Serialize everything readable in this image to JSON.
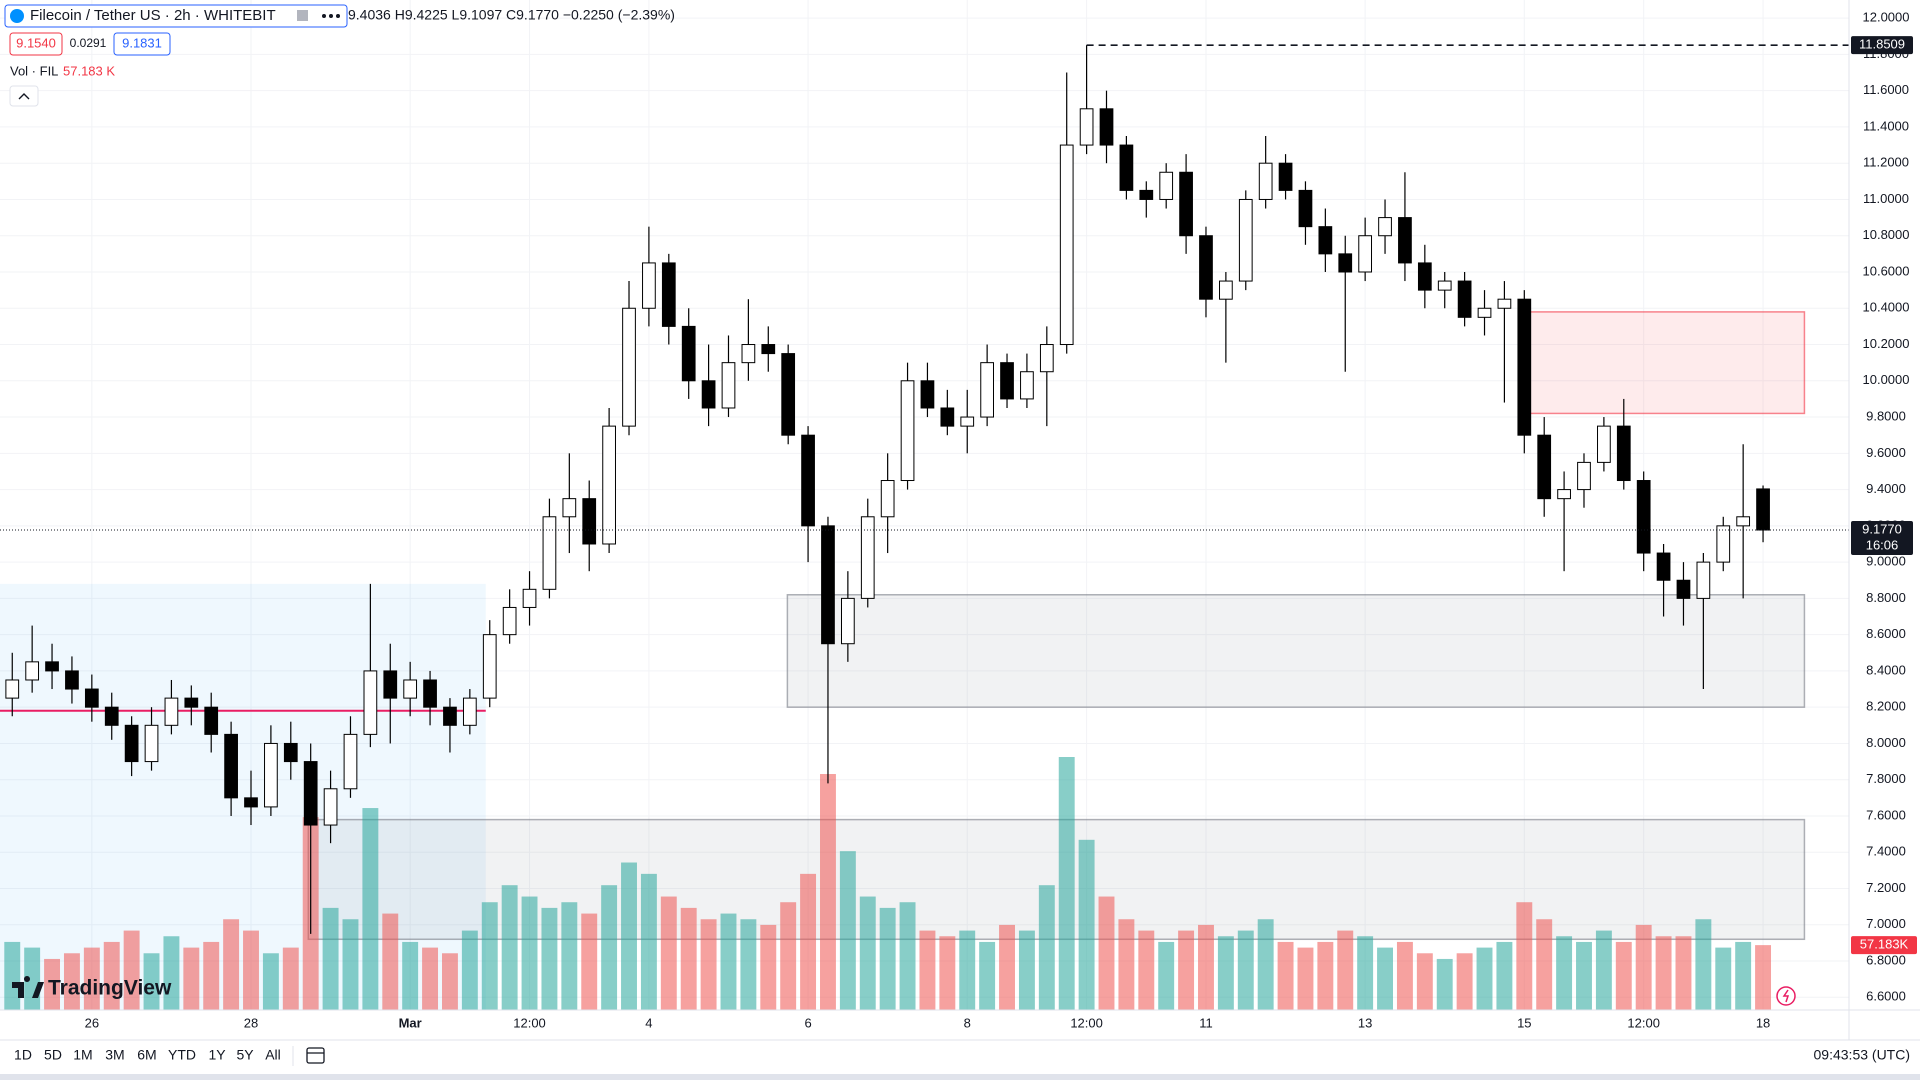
{
  "header": {
    "symbol": "Filecoin / Tether US · 2h · WHITEBIT",
    "ohlc": "9.4036 H9.4225 L9.1097 C9.1770 −0.2250 (−2.39%)",
    "sell": "9.1540",
    "spread": "0.0291",
    "buy": "9.1831",
    "volume_label": "Vol · FIL",
    "volume_value": "57.183 K"
  },
  "logo": "TradingView",
  "toolbar": {
    "ranges": [
      "1D",
      "5D",
      "1M",
      "3M",
      "6M",
      "YTD",
      "1Y",
      "5Y",
      "All"
    ],
    "clock": "09:43:53 (UTC)"
  },
  "chart_data": {
    "type": "candlestick",
    "x": [
      25,
      25.25,
      25.5,
      25.75,
      26,
      26.25,
      26.5,
      26.75,
      27,
      27.25,
      27.5,
      27.75,
      28,
      28.25,
      28.5,
      28.75,
      29,
      29.25,
      29.5,
      29.75,
      30,
      30.25,
      30.5,
      30.75,
      31,
      31.25,
      31.5,
      31.75,
      32,
      32.25,
      32.5,
      32.75,
      33,
      33.25,
      33.5,
      33.75,
      34,
      34.25,
      34.5,
      34.75,
      35,
      35.25,
      35.5,
      35.75,
      36,
      36.25,
      36.5,
      36.75,
      37,
      37.25,
      37.5,
      37.75,
      38,
      38.25,
      38.5,
      38.75,
      39,
      39.25,
      39.5,
      39.75,
      40,
      40.25,
      40.5,
      40.75,
      41,
      41.25,
      41.5,
      41.75,
      42,
      42.25,
      42.5,
      42.75,
      43,
      43.25,
      43.5,
      43.75,
      44,
      44.25,
      44.5,
      44.75,
      45,
      45.25,
      45.5,
      45.75,
      46,
      46.25,
      46.5,
      46.75,
      47
    ],
    "open": [
      8.25,
      8.35,
      8.45,
      8.4,
      8.3,
      8.2,
      8.1,
      7.9,
      8.1,
      8.25,
      8.2,
      8.05,
      7.7,
      7.65,
      8.0,
      7.9,
      7.55,
      7.75,
      8.05,
      8.4,
      8.25,
      8.35,
      8.2,
      8.1,
      8.25,
      8.6,
      8.75,
      8.85,
      9.25,
      9.35,
      9.1,
      9.75,
      10.4,
      10.65,
      10.3,
      10.0,
      9.85,
      10.1,
      10.2,
      10.15,
      9.7,
      9.2,
      8.55,
      8.8,
      9.25,
      9.45,
      10.0,
      9.85,
      9.75,
      9.8,
      10.1,
      9.9,
      10.05,
      10.2,
      11.3,
      11.5,
      11.3,
      11.05,
      11.0,
      11.15,
      10.8,
      10.45,
      10.55,
      11.0,
      11.2,
      11.05,
      10.85,
      10.7,
      10.6,
      10.8,
      10.9,
      10.65,
      10.5,
      10.55,
      10.35,
      10.4,
      10.45,
      9.7,
      9.35,
      9.4,
      9.55,
      9.75,
      9.45,
      9.05,
      8.9,
      8.8,
      9.0,
      9.2,
      9.4036
    ],
    "high": [
      8.5,
      8.65,
      8.55,
      8.48,
      8.38,
      8.28,
      8.15,
      8.2,
      8.35,
      8.32,
      8.28,
      8.12,
      7.85,
      8.1,
      8.12,
      8.0,
      7.85,
      8.15,
      8.88,
      8.55,
      8.45,
      8.4,
      8.25,
      8.3,
      8.68,
      8.85,
      8.95,
      9.35,
      9.6,
      9.45,
      9.85,
      10.55,
      10.85,
      10.7,
      10.4,
      10.2,
      10.25,
      10.45,
      10.3,
      10.2,
      9.75,
      9.25,
      8.95,
      9.35,
      9.6,
      10.1,
      10.1,
      9.95,
      9.95,
      10.2,
      10.15,
      10.15,
      10.3,
      11.7,
      11.8509,
      11.6,
      11.35,
      11.1,
      11.2,
      11.25,
      10.85,
      10.6,
      11.05,
      11.35,
      11.25,
      11.1,
      10.95,
      10.8,
      10.9,
      11.0,
      11.15,
      10.75,
      10.6,
      10.6,
      10.5,
      10.55,
      10.5,
      9.8,
      9.5,
      9.6,
      9.8,
      9.9,
      9.5,
      9.1,
      9.0,
      9.05,
      9.25,
      9.65,
      9.4225
    ],
    "low": [
      8.15,
      8.28,
      8.3,
      8.22,
      8.12,
      8.02,
      7.82,
      7.85,
      8.05,
      8.1,
      7.95,
      7.6,
      7.55,
      7.6,
      7.8,
      6.95,
      7.45,
      7.7,
      7.98,
      8.0,
      8.15,
      8.1,
      7.95,
      8.05,
      8.2,
      8.55,
      8.65,
      8.8,
      9.05,
      8.95,
      9.05,
      9.7,
      10.3,
      10.2,
      9.9,
      9.75,
      9.8,
      10.0,
      10.05,
      9.65,
      9.0,
      7.78,
      8.45,
      8.75,
      9.05,
      9.4,
      9.8,
      9.7,
      9.6,
      9.75,
      9.85,
      9.85,
      9.75,
      10.15,
      11.25,
      11.2,
      11.0,
      10.9,
      10.95,
      10.7,
      10.35,
      10.1,
      10.5,
      10.95,
      11.0,
      10.75,
      10.6,
      10.05,
      10.55,
      10.7,
      10.55,
      10.4,
      10.4,
      10.3,
      10.25,
      9.88,
      9.6,
      9.25,
      8.95,
      9.3,
      9.5,
      9.4,
      8.95,
      8.7,
      8.65,
      8.3,
      8.95,
      8.8,
      9.1097
    ],
    "close": [
      8.35,
      8.45,
      8.4,
      8.3,
      8.2,
      8.1,
      7.9,
      8.1,
      8.25,
      8.2,
      8.05,
      7.7,
      7.65,
      8.0,
      7.9,
      7.55,
      7.75,
      8.05,
      8.4,
      8.25,
      8.35,
      8.2,
      8.1,
      8.25,
      8.6,
      8.75,
      8.85,
      9.25,
      9.35,
      9.1,
      9.75,
      10.4,
      10.65,
      10.3,
      10.0,
      9.85,
      10.1,
      10.2,
      10.15,
      9.7,
      9.2,
      8.55,
      8.8,
      9.25,
      9.45,
      10.0,
      9.85,
      9.75,
      9.8,
      10.1,
      9.9,
      10.05,
      10.2,
      11.3,
      11.5,
      11.3,
      11.05,
      11.0,
      11.15,
      10.8,
      10.45,
      10.55,
      11.0,
      11.2,
      11.05,
      10.85,
      10.7,
      10.6,
      10.8,
      10.9,
      10.65,
      10.5,
      10.55,
      10.35,
      10.4,
      10.45,
      9.7,
      9.35,
      9.4,
      9.55,
      9.75,
      9.45,
      9.05,
      8.9,
      8.8,
      9.0,
      9.2,
      9.25,
      9.177
    ],
    "volume": [
      60,
      55,
      45,
      50,
      55,
      60,
      70,
      50,
      65,
      55,
      60,
      80,
      70,
      50,
      55,
      170,
      90,
      80,
      178,
      85,
      60,
      55,
      50,
      70,
      95,
      110,
      100,
      90,
      95,
      85,
      110,
      130,
      120,
      100,
      90,
      80,
      85,
      80,
      75,
      95,
      120,
      208,
      140,
      100,
      90,
      95,
      70,
      65,
      70,
      60,
      75,
      70,
      110,
      223,
      150,
      100,
      80,
      70,
      60,
      70,
      75,
      65,
      70,
      80,
      60,
      55,
      60,
      70,
      65,
      55,
      60,
      50,
      45,
      50,
      55,
      60,
      95,
      80,
      65,
      60,
      70,
      60,
      75,
      65,
      65,
      80,
      55,
      60,
      57.183
    ],
    "last_volume_label": "57.183K",
    "volume_lim": [
      0,
      223
    ],
    "up_color": "#ffffff",
    "down_color": "#000000",
    "wick_color": "#000000",
    "volume_up_color": "#26a69a",
    "volume_down_color": "#ef5350",
    "grid": true,
    "xlim": [
      24.846,
      48.08
    ],
    "ylim": [
      6.53,
      12.1
    ],
    "xticks": [
      {
        "value": 26,
        "label": "26"
      },
      {
        "value": 28,
        "label": "28"
      },
      {
        "value": 30,
        "label": "Mar"
      },
      {
        "value": 31.5,
        "label": "12:00"
      },
      {
        "value": 33,
        "label": "4"
      },
      {
        "value": 35,
        "label": "6"
      },
      {
        "value": 37,
        "label": "8"
      },
      {
        "value": 38.5,
        "label": "12:00"
      },
      {
        "value": 40,
        "label": "11"
      },
      {
        "value": 42,
        "label": "13"
      },
      {
        "value": 44,
        "label": "15"
      },
      {
        "value": 45.5,
        "label": "12:00"
      },
      {
        "value": 47,
        "label": "18"
      }
    ],
    "yticks": [
      {
        "value": 12,
        "label": "12.0000"
      },
      {
        "value": 11.8,
        "label": "11.8000"
      },
      {
        "value": 11.6,
        "label": "11.6000"
      },
      {
        "value": 11.4,
        "label": "11.4000"
      },
      {
        "value": 11.2,
        "label": "11.2000"
      },
      {
        "value": 11,
        "label": "11.0000"
      },
      {
        "value": 10.8,
        "label": "10.8000"
      },
      {
        "value": 10.6,
        "label": "10.6000"
      },
      {
        "value": 10.4,
        "label": "10.4000"
      },
      {
        "value": 10.2,
        "label": "10.2000"
      },
      {
        "value": 10,
        "label": "10.0000"
      },
      {
        "value": 9.8,
        "label": "9.8000"
      },
      {
        "value": 9.6,
        "label": "9.6000"
      },
      {
        "value": 9.4,
        "label": "9.4000"
      },
      {
        "value": 9.2,
        "label": "9.2000"
      },
      {
        "value": 9,
        "label": "9.0000"
      },
      {
        "value": 8.8,
        "label": "8.8000"
      },
      {
        "value": 8.6,
        "label": "8.6000"
      },
      {
        "value": 8.4,
        "label": "8.4000"
      },
      {
        "value": 8.2,
        "label": "8.2000"
      },
      {
        "value": 8,
        "label": "8.0000"
      },
      {
        "value": 7.8,
        "label": "7.8000"
      },
      {
        "value": 7.6,
        "label": "7.6000"
      },
      {
        "value": 7.4,
        "label": "7.4000"
      },
      {
        "value": 7.2,
        "label": "7.2000"
      },
      {
        "value": 7,
        "label": "7.0000"
      },
      {
        "value": 6.8,
        "label": "6.8000"
      },
      {
        "value": 6.6,
        "label": "6.6000"
      }
    ],
    "last_price": {
      "value": 9.177,
      "label": "9.1770",
      "countdown": "16:06"
    },
    "high_line": {
      "value": 11.8509,
      "label": "11.8509"
    },
    "level_line": {
      "value": 8.18,
      "x": [
        24.846,
        30.95
      ],
      "color": "#e91e63"
    },
    "zones": [
      {
        "x": [
          24.846,
          30.95
        ],
        "y": [
          6.53,
          8.88
        ],
        "color": "#2196f3"
      },
      {
        "x": [
          28.72,
          47.52
        ],
        "y": [
          6.92,
          7.58
        ],
        "color": "#787b86"
      },
      {
        "x": [
          34.74,
          47.52
        ],
        "y": [
          8.2,
          8.82
        ],
        "color": "#787b86"
      },
      {
        "x": [
          44.05,
          47.52
        ],
        "y": [
          9.82,
          10.38
        ],
        "color": "#f23645"
      }
    ]
  }
}
